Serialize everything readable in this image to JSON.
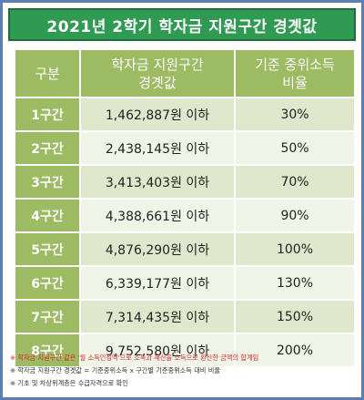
{
  "title": "2021년 2학기 학자금 지원구간 경곗값",
  "table": {
    "headers": [
      {
        "line1": "구분",
        "line2": ""
      },
      {
        "line1": "학자금 지원구간",
        "line2": "경곗값"
      },
      {
        "line1": "기준 중위소득",
        "line2": "비율"
      }
    ],
    "rows": [
      {
        "label": "1구간",
        "amount": "1,462,887원 이하",
        "ratio": "30%"
      },
      {
        "label": "2구간",
        "amount": "2,438,145원 이하",
        "ratio": "50%"
      },
      {
        "label": "3구간",
        "amount": "3,413,403원 이하",
        "ratio": "70%"
      },
      {
        "label": "4구간",
        "amount": "4,388,661원 이하",
        "ratio": "90%"
      },
      {
        "label": "5구간",
        "amount": "4,876,290원 이하",
        "ratio": "100%"
      },
      {
        "label": "6구간",
        "amount": "6,339,177원 이하",
        "ratio": "130%"
      },
      {
        "label": "7구간",
        "amount": "7,314,435원 이하",
        "ratio": "150%"
      },
      {
        "label": "8구간",
        "amount": "9,752,580원 이하",
        "ratio": "200%"
      }
    ]
  },
  "notes": [
    {
      "mark": "※",
      "text": "학자금 지원구간 값은 '월 소득인정액'으로 소득과 재산을 소득으로 환산한 금액의 합계임",
      "red": true
    },
    {
      "mark": "※",
      "text": "학자금 지원구간 경곗값 = 기준중위소득 x 구간별 기준중위소득 대비 비율",
      "red": false
    },
    {
      "mark": "※",
      "text": "기초 및 차상위계층은 수급자격으로 확인",
      "red": false
    }
  ],
  "colors": {
    "title_bg": "#2f9a52",
    "header_bg": "#9dbb62",
    "row_odd": "#dfe8cc",
    "row_even": "#f1f5e8",
    "frame": "#5b7fb0",
    "note_red": "#d9252a"
  }
}
